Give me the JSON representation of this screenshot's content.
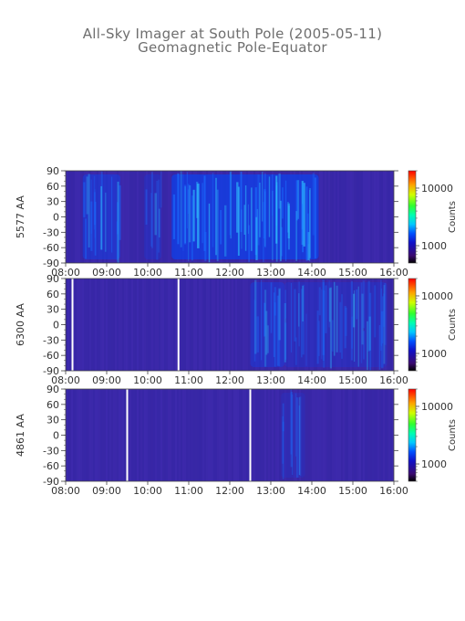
{
  "chart_data": {
    "type": "heatmap",
    "title": "All-Sky Imager at South Pole (2005-05-11)",
    "subtitle": "Geomagnetic Pole-Equator",
    "x_ticks": [
      "08:00",
      "09:00",
      "10:00",
      "11:00",
      "12:00",
      "13:00",
      "14:00",
      "15:00",
      "16:00"
    ],
    "y_ticks": [
      90,
      60,
      30,
      0,
      -30,
      -60,
      -90
    ],
    "xlim": [
      "08:00",
      "16:00"
    ],
    "ylim": [
      -90,
      90
    ],
    "colorbar_label": "Counts",
    "colorbar_ticks": [
      1000,
      10000
    ],
    "colorbar_range": [
      500,
      20000
    ],
    "panels": [
      {
        "ylabel": "5577 AA",
        "gaps": [],
        "activity": [
          {
            "start": "08:25",
            "end": "09:20",
            "intensity": 0.55
          },
          {
            "start": "09:55",
            "end": "10:20",
            "intensity": 0.3
          },
          {
            "start": "10:35",
            "end": "14:10",
            "intensity": 0.85
          }
        ]
      },
      {
        "ylabel": "6300 AA",
        "gaps": [
          "08:10",
          "10:45"
        ],
        "activity": [
          {
            "start": "12:30",
            "end": "13:20",
            "intensity": 0.45
          },
          {
            "start": "13:20",
            "end": "15:50",
            "intensity": 0.3
          }
        ]
      },
      {
        "ylabel": "4861 AA",
        "gaps": [
          "09:30",
          "12:30"
        ],
        "activity": [
          {
            "start": "13:15",
            "end": "13:50",
            "intensity": 0.2
          }
        ]
      }
    ]
  }
}
